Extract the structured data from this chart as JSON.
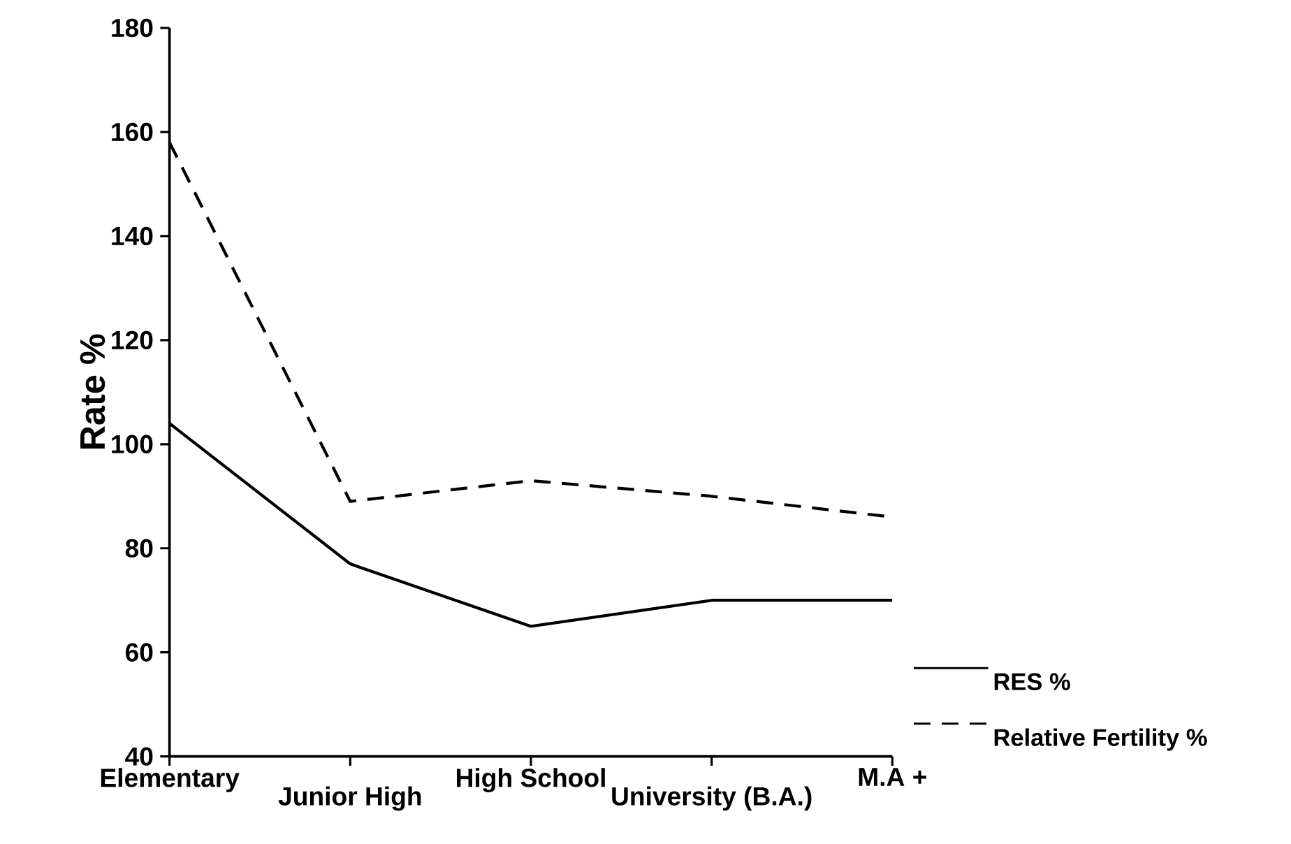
{
  "chart_data": {
    "type": "line",
    "ylabel": "Rate %",
    "categories": [
      "Elementary",
      "Junior High",
      "High School",
      "University (B.A.)",
      "M.A +"
    ],
    "series": [
      {
        "name": "RES %",
        "color": "#000000",
        "line_style": "solid",
        "values": [
          104,
          77,
          65,
          70,
          70
        ]
      },
      {
        "name": "Relative Fertility %",
        "color": "#000000",
        "line_style": "dashed",
        "values": [
          158,
          89,
          93,
          90,
          86
        ]
      }
    ],
    "ylim": [
      40,
      180
    ],
    "yticks": [
      40,
      60,
      80,
      100,
      120,
      140,
      160,
      180
    ],
    "grid": false,
    "legend": "right",
    "marker": "none"
  }
}
